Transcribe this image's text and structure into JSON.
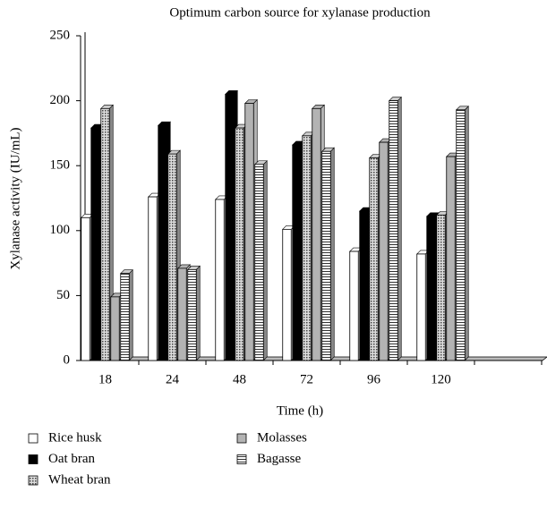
{
  "chart_data": {
    "type": "bar",
    "title": "Optimum carbon source for xylanase production",
    "x_label": "Time (h)",
    "y_label": "Xylanase activity (IU/mL)",
    "categories": [
      "18",
      "24",
      "48",
      "72",
      "96",
      "120",
      null
    ],
    "series": [
      {
        "name": "Rice husk",
        "color": "#ffffff",
        "pattern": "solid",
        "values": [
          110,
          126,
          124,
          101,
          84,
          82,
          null
        ]
      },
      {
        "name": "Oat bran",
        "color": "#000000",
        "pattern": "solid",
        "values": [
          179,
          181,
          205,
          166,
          115,
          111,
          null
        ]
      },
      {
        "name": "Wheat bran",
        "color": "#999999",
        "pattern": "dots",
        "values": [
          194,
          159,
          179,
          173,
          156,
          112,
          null
        ]
      },
      {
        "name": "Molasses",
        "color": "#b3b3b3",
        "pattern": "solid",
        "values": [
          49,
          71,
          198,
          194,
          168,
          157,
          null
        ]
      },
      {
        "name": "Bagasse",
        "color": "#555555",
        "pattern": "stripes",
        "values": [
          67,
          70,
          151,
          161,
          200,
          193,
          null
        ]
      }
    ],
    "ylim": [
      0,
      250
    ],
    "yticks": [
      0,
      50,
      100,
      150,
      200,
      250
    ],
    "grid": false
  }
}
